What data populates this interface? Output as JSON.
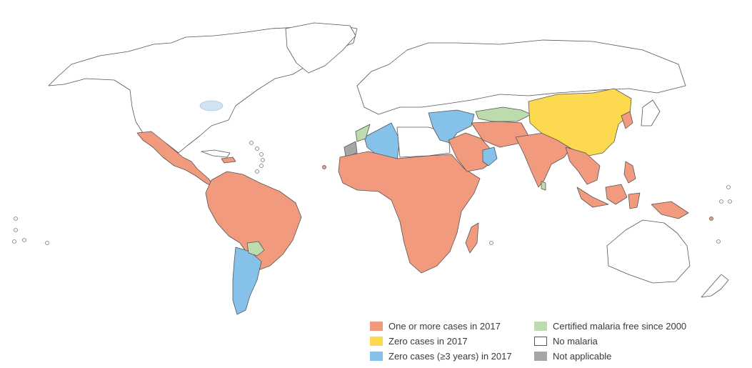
{
  "colors": {
    "one_or_more_cases": "#f29a7e",
    "zero_cases": "#fcd94e",
    "zero_cases_3_years": "#86c1ea",
    "certified_free": "#bcdcad",
    "no_malaria": "#ffffff",
    "not_applicable": "#a6a6a6"
  },
  "legend": {
    "items": [
      {
        "label": "One or more cases in 2017",
        "color": "#f29a7e"
      },
      {
        "label": "Zero cases in 2017",
        "color": "#fcd94e"
      },
      {
        "label": "Zero cases (≥3 years) in 2017",
        "color": "#86c1ea"
      },
      {
        "label": "Certified malaria free since 2000",
        "color": "#bcdcad"
      },
      {
        "label": "No malaria",
        "color": "#ffffff"
      },
      {
        "label": "Not applicable",
        "color": "#a6a6a6"
      }
    ]
  }
}
